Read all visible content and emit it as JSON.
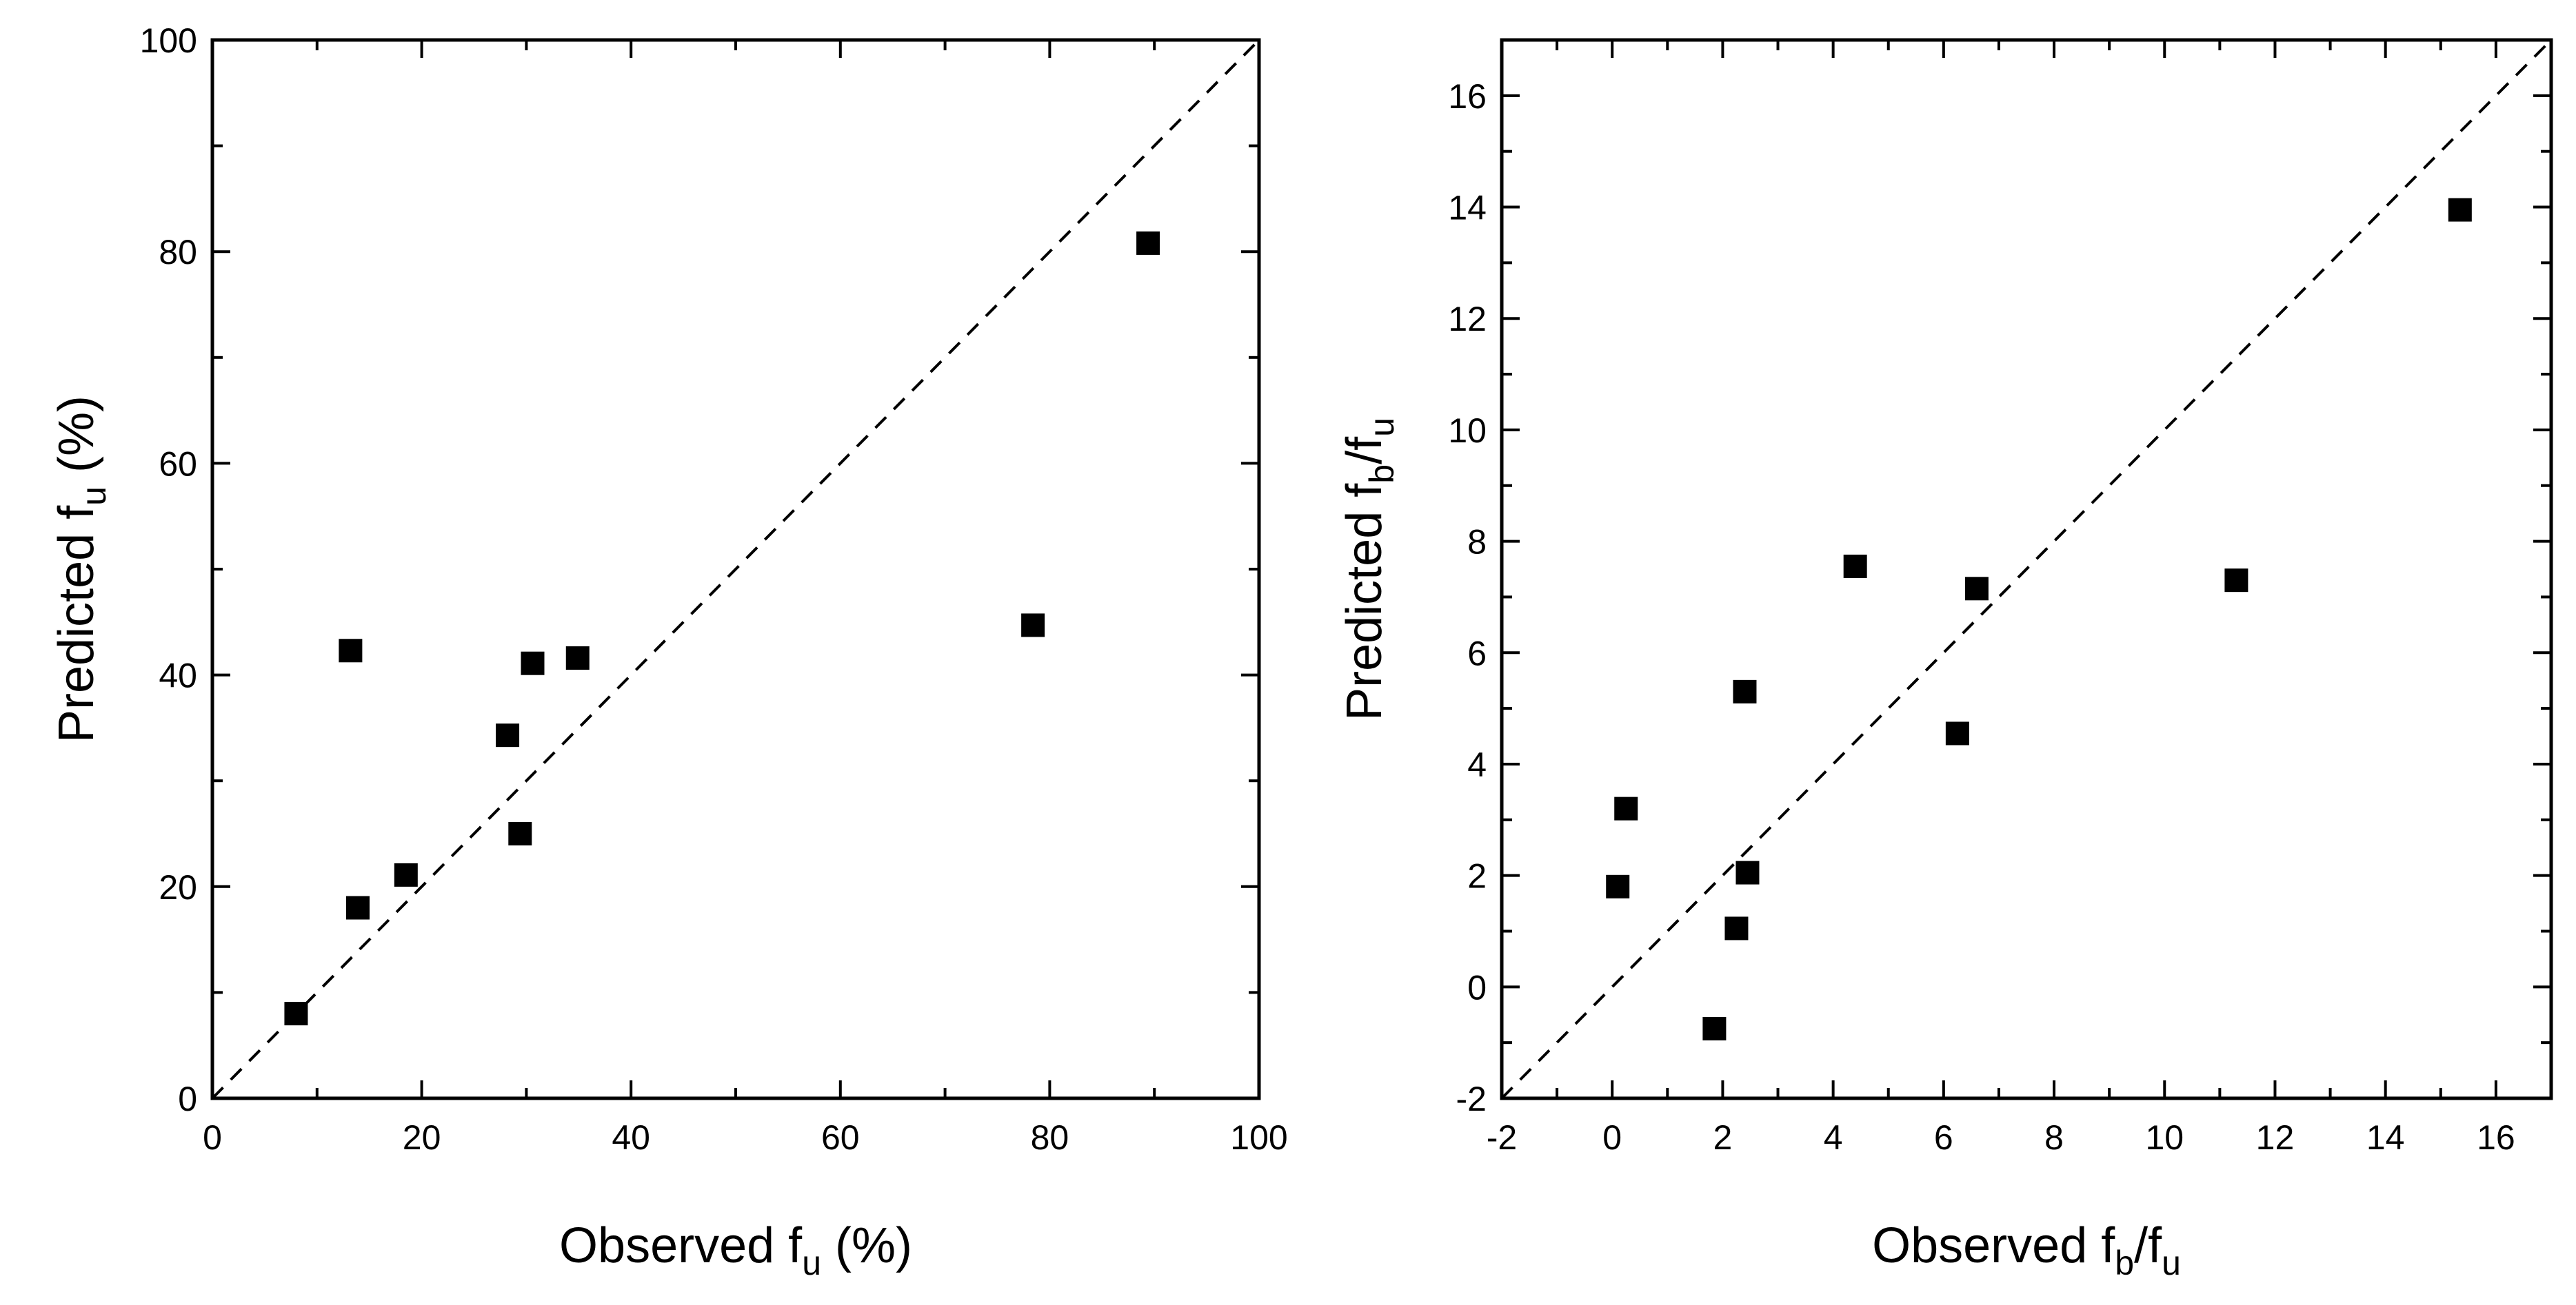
{
  "chart_data": [
    {
      "type": "scatter",
      "xlabel": {
        "main": "Observed f",
        "sub": "u",
        "suffix": " (%)"
      },
      "ylabel": {
        "main": "Predicted f",
        "sub": "u",
        "suffix": " (%)"
      },
      "xlim": [
        0,
        100
      ],
      "ylim": [
        0,
        100
      ],
      "xticks": [
        0,
        20,
        40,
        60,
        80,
        100
      ],
      "yticks": [
        0,
        20,
        40,
        60,
        80,
        100
      ],
      "minor_step": 10,
      "reference_line": "y = x (dashed)",
      "grid": false,
      "legend": "none",
      "marker": "filled square",
      "color": "#000000",
      "series": [
        {
          "points": [
            {
              "x": 8.0,
              "y": 8.0
            },
            {
              "x": 13.2,
              "y": 42.3
            },
            {
              "x": 13.9,
              "y": 18.0
            },
            {
              "x": 18.5,
              "y": 21.1
            },
            {
              "x": 28.2,
              "y": 34.3
            },
            {
              "x": 29.4,
              "y": 25.0
            },
            {
              "x": 30.6,
              "y": 41.1
            },
            {
              "x": 34.9,
              "y": 41.6
            },
            {
              "x": 78.4,
              "y": 44.7
            },
            {
              "x": 89.4,
              "y": 80.8
            }
          ]
        }
      ]
    },
    {
      "type": "scatter",
      "xlabel": {
        "main": "Observed f",
        "sub1": "b",
        "mid": "/f",
        "sub2": "u"
      },
      "ylabel": {
        "main": "Predicted f",
        "sub1": "b",
        "mid": "/f",
        "sub2": "u"
      },
      "xlim": [
        -2,
        17
      ],
      "ylim": [
        -2,
        17
      ],
      "xticks": [
        -2,
        0,
        2,
        4,
        6,
        8,
        10,
        12,
        14,
        16
      ],
      "yticks": [
        -2,
        0,
        2,
        4,
        6,
        8,
        10,
        12,
        14,
        16
      ],
      "minor_step": 1,
      "reference_line": "y = x (dashed)",
      "grid": false,
      "legend": "none",
      "marker": "filled square",
      "color": "#000000",
      "series": [
        {
          "points": [
            {
              "x": 0.1,
              "y": 1.8
            },
            {
              "x": 0.25,
              "y": 3.2
            },
            {
              "x": 1.85,
              "y": -0.75
            },
            {
              "x": 2.25,
              "y": 1.05
            },
            {
              "x": 2.4,
              "y": 5.3
            },
            {
              "x": 2.45,
              "y": 2.05
            },
            {
              "x": 4.4,
              "y": 7.55
            },
            {
              "x": 6.25,
              "y": 4.55
            },
            {
              "x": 6.6,
              "y": 7.15
            },
            {
              "x": 11.3,
              "y": 7.3
            },
            {
              "x": 15.35,
              "y": 13.95
            }
          ]
        }
      ]
    }
  ]
}
